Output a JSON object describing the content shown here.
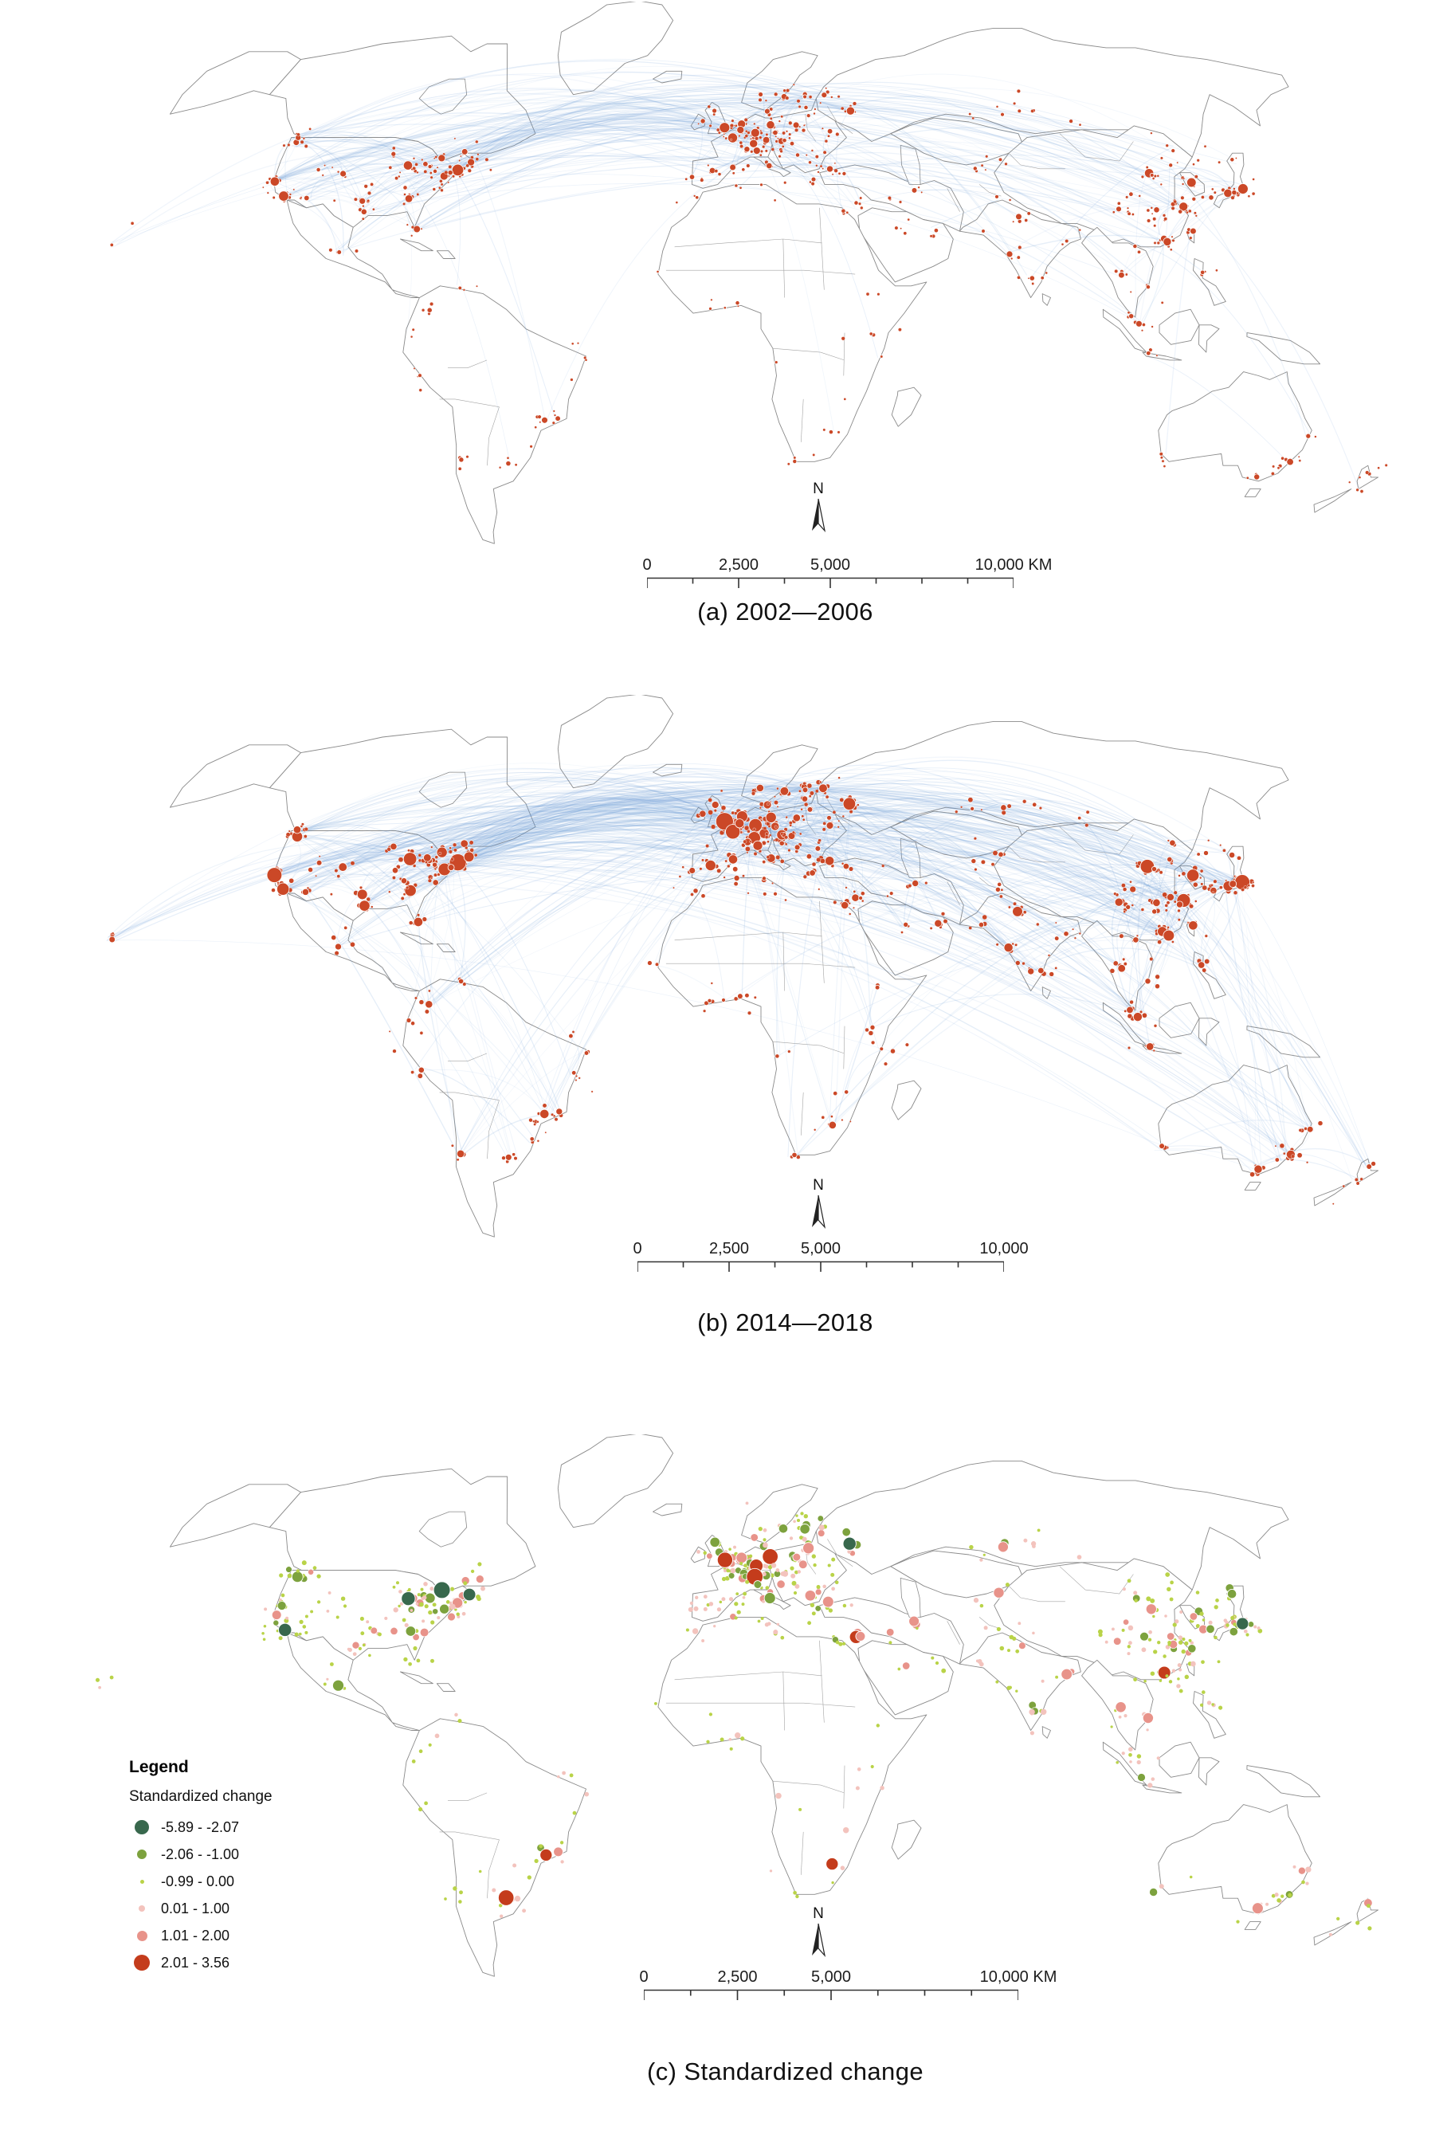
{
  "figure": {
    "panels": [
      {
        "id": "a",
        "caption": "(a) 2002—2006",
        "north_label": "N",
        "scalebar": {
          "labels": [
            "0",
            "2,500",
            "5,000",
            "10,000 KM"
          ]
        }
      },
      {
        "id": "b",
        "caption": "(b) 2014—2018",
        "north_label": "N",
        "scalebar": {
          "labels": [
            "0",
            "2,500",
            "5,000",
            "10,000"
          ]
        }
      },
      {
        "id": "c",
        "caption": "(c) Standardized change",
        "north_label": "N",
        "scalebar": {
          "labels": [
            "0",
            "2,500",
            "5,000",
            "10,000 KM"
          ]
        }
      }
    ],
    "legend": {
      "title": "Legend",
      "subtitle": "Standardized change",
      "items": [
        {
          "label": "-5.89 - -2.07",
          "color": "#38684d",
          "radius": 9
        },
        {
          "label": "-2.06 - -1.00",
          "color": "#7da23e",
          "radius": 6
        },
        {
          "label": "-0.99 - 0.00",
          "color": "#b9d348",
          "radius": 2.5
        },
        {
          "label": "0.01 - 1.00",
          "color": "#f3c3bd",
          "radius": 4
        },
        {
          "label": "1.01 - 2.00",
          "color": "#e8938a",
          "radius": 6.5
        },
        {
          "label": "2.01 - 3.56",
          "color": "#c43c1c",
          "radius": 10
        }
      ]
    },
    "colors": {
      "node": "#cb4827",
      "flow": "#6f9fd8",
      "land_stroke": "#8a8a8a",
      "land_fill": "#ffffff"
    }
  }
}
